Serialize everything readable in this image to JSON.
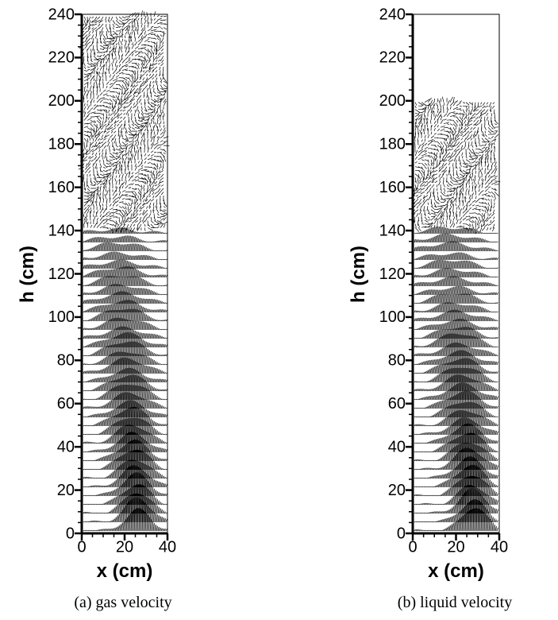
{
  "chart_data": [
    {
      "type": "quiver",
      "title": "(a) gas velocity",
      "xlabel": "x (cm)",
      "ylabel": "h (cm)",
      "xlim": [
        0,
        40
      ],
      "ylim": [
        0,
        240
      ],
      "xticks": [
        0,
        20,
        40
      ],
      "yticks": [
        0,
        20,
        40,
        60,
        80,
        100,
        120,
        140,
        160,
        180,
        200,
        220,
        240
      ],
      "minor_tick_step": 5
    },
    {
      "type": "quiver",
      "title": "(b) liquid velocity",
      "xlabel": "x (cm)",
      "ylabel": "h (cm)",
      "xlim": [
        0,
        40
      ],
      "ylim": [
        0,
        240
      ],
      "xticks": [
        0,
        20,
        40
      ],
      "yticks": [
        0,
        20,
        40,
        60,
        80,
        100,
        120,
        140,
        160,
        180,
        200,
        220,
        240
      ],
      "minor_tick_step": 5
    }
  ]
}
